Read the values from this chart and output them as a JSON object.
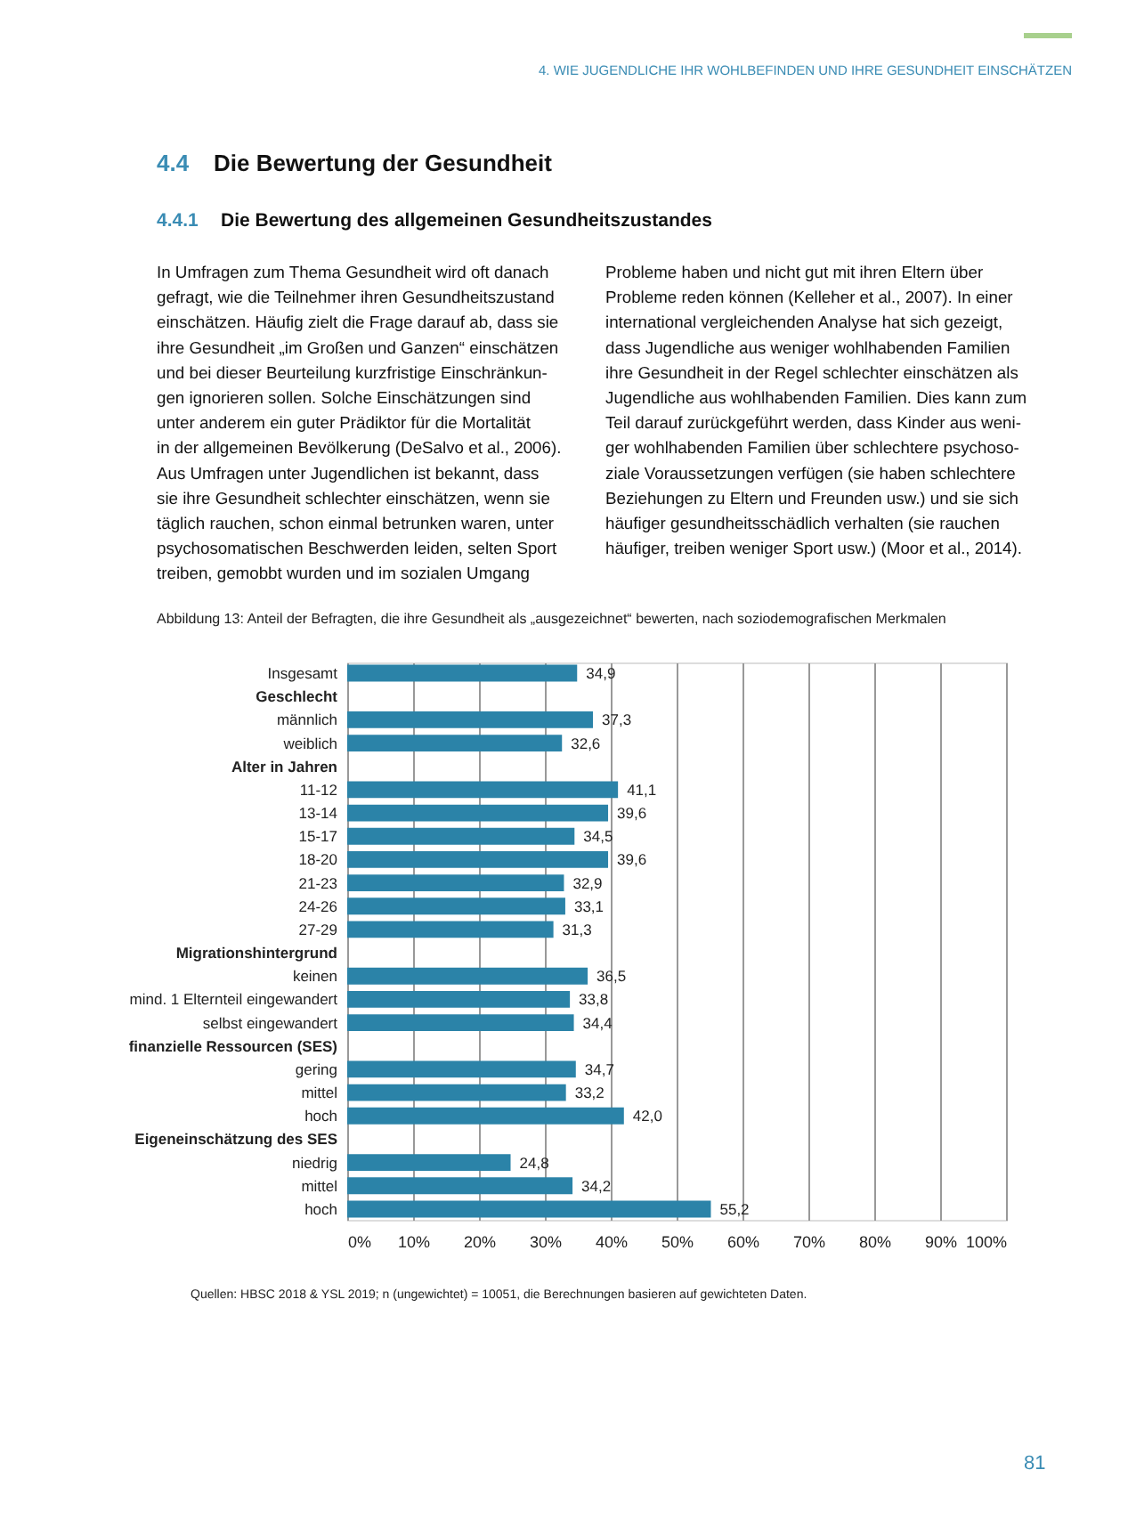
{
  "chart_data": {
    "type": "bar",
    "orientation": "horizontal",
    "title": "Abbildung 13: Anteil der Befragten, die ihre Gesundheit als „ausgezeichnet“ bewerten, nach soziodemografischen Merkmalen",
    "categories": [
      "Insgesamt",
      "Geschlecht",
      "männlich",
      "weiblich",
      "Alter in Jahren",
      "11-12",
      "13-14",
      "15-17",
      "18-20",
      "21-23",
      "24-26",
      "27-29",
      "Migrationshintergrund",
      "keinen",
      "mind. 1 Elternteil eingewandert",
      "selbst eingewandert",
      "finanzielle Ressourcen (SES)",
      "gering",
      "mittel",
      "hoch",
      "Eigeneinschätzung des SES",
      "niedrig",
      "mittel",
      "hoch"
    ],
    "values": [
      34.9,
      null,
      37.3,
      32.6,
      null,
      41.1,
      39.6,
      34.5,
      39.6,
      32.9,
      33.1,
      31.3,
      null,
      36.5,
      33.8,
      34.4,
      null,
      34.7,
      33.2,
      42.0,
      null,
      24.8,
      34.2,
      55.2
    ],
    "value_labels": [
      "34,9",
      null,
      "37,3",
      "32,6",
      null,
      "41,1",
      "39,6",
      "34,5",
      "39,6",
      "32,9",
      "33,1",
      "31,3",
      null,
      "36,5",
      "33,8",
      "34,4",
      null,
      "34,7",
      "33,2",
      "42,0",
      null,
      "24,8",
      "34,2",
      "55,2"
    ],
    "color": "#2b83a8",
    "xlim": [
      0,
      100
    ],
    "xticks": [
      {
        "value": 0,
        "label": "0%"
      },
      {
        "value": 10,
        "label": "10%"
      },
      {
        "value": 20,
        "label": "20%"
      },
      {
        "value": 30,
        "label": "30%"
      },
      {
        "value": 40,
        "label": "40%"
      },
      {
        "value": 50,
        "label": "50%"
      },
      {
        "value": 60,
        "label": "60%"
      },
      {
        "value": 70,
        "label": "70%"
      },
      {
        "value": 80,
        "label": "80%"
      },
      {
        "value": 90,
        "label": "90%"
      },
      {
        "value": 100,
        "label": "100%"
      }
    ],
    "grid": "x",
    "annotations": [
      "4. WIE JUGENDLICHE IHR WOHLBEFINDEN UND IHRE GESUNDHEIT EINSCHÄTZEN",
      "4.4",
      "Die Bewertung der Gesundheit",
      "4.4.1",
      "Die Bewertung des allgemeinen Gesundheitszustandes",
      "In Umfragen zum Thema Gesundheit wird oft danach",
      "gefragt, wie die Teilnehmer ihren Gesundheitszustand",
      "einschätzen. Häufig zielt die Frage darauf ab, dass sie",
      "ihre Gesundheit „im Großen und Ganzen“ einschätzen",
      "und bei dieser Beurteilung kurzfristige Einschränkun-",
      "gen ignorieren sollen. Solche Einschätzungen sind",
      "unter anderem ein guter Prädiktor für die Mortalität",
      "in der allgemeinen Bevölkerung (DeSalvo et al., 2006).",
      "Aus Umfragen unter Jugendlichen ist bekannt, dass",
      "sie ihre Gesundheit schlechter einschätzen, wenn sie",
      "täglich rauchen, schon einmal betrunken waren, unter",
      "psychosomatischen Beschwerden leiden, selten Sport",
      "treiben, gemobbt wurden und im sozialen Umgang",
      "Probleme haben und nicht gut mit ihren Eltern über",
      "Probleme reden können (Kelleher et al., 2007). In einer",
      "international vergleichenden Analyse hat sich gezeigt,",
      "dass Jugendliche aus weniger wohlhabenden Familien",
      "ihre Gesundheit in der Regel schlechter einschätzen als",
      "Jugendliche aus wohlhabenden Familien. Dies kann zum",
      "Teil darauf zurückgeführt werden, dass Kinder aus weni-",
      "ger wohlhabenden Familien über schlechtere psychoso-",
      "ziale Voraussetzungen verfügen (sie haben schlechtere",
      "Beziehungen zu Eltern und Freunden usw.) und sie sich",
      "häufiger gesundheitsschädlich verhalten (sie rauchen",
      "häufiger, treiben weniger Sport usw.) (Moor et al., 2014).",
      "Quellen: HBSC 2018 & YSL 2019; n (ungewichtet) = 10051, die Berechnungen basieren auf gewichteten Daten.",
      "81"
    ]
  }
}
